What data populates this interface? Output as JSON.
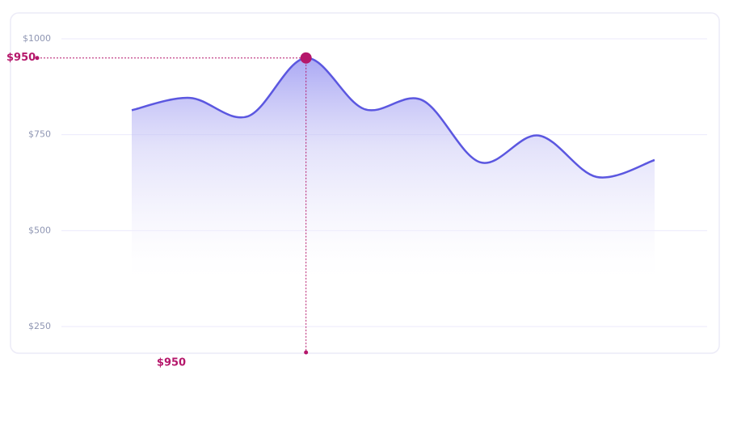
{
  "chart_data": {
    "type": "area",
    "values": [
      814,
      846,
      798,
      950,
      817,
      840,
      678,
      748,
      640,
      684
    ],
    "color": "#5b57e0",
    "ylim": [
      250,
      1000
    ],
    "yticks": [
      {
        "value": 250,
        "label": "$250"
      },
      {
        "value": 500,
        "label": "$500"
      },
      {
        "value": 750,
        "label": "$750"
      },
      {
        "value": 1000,
        "label": "$1000"
      }
    ],
    "grid": true,
    "highlight": {
      "index": 3,
      "label": "$950",
      "color": "#b5176b"
    }
  }
}
